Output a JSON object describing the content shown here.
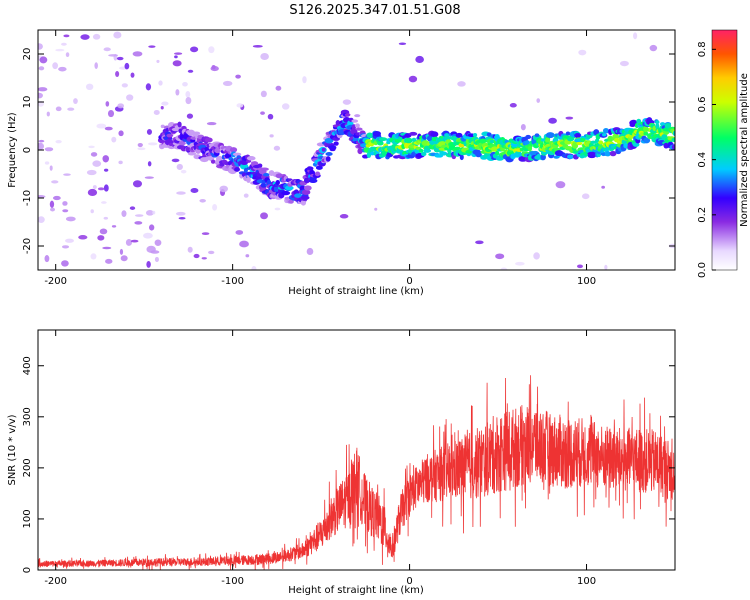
{
  "title": "S126.2025.347.01.51.G08",
  "chart_data": [
    {
      "type": "heatmap",
      "xlabel": "Height of straight line (km)",
      "ylabel": "Frequency (Hz)",
      "xlim": [
        -210,
        150
      ],
      "ylim": [
        -25,
        25
      ],
      "x_ticks": [
        "-200",
        "-100",
        "0",
        "100"
      ],
      "y_ticks": [
        "-20",
        "-10",
        "0",
        "10",
        "20"
      ],
      "ridge": {
        "x": [
          -130,
          -115,
          -100,
          -90,
          -80,
          -70,
          -60,
          -50,
          -45,
          -40,
          -35,
          -30,
          -25,
          -20,
          0,
          20,
          40,
          60,
          80,
          100,
          120,
          130,
          150
        ],
        "frequency": [
          3,
          0,
          -2,
          -4,
          -7,
          -8,
          -9,
          -1,
          1,
          5,
          6,
          3,
          1,
          1,
          1,
          1,
          1,
          0,
          1,
          1,
          2,
          4,
          3
        ]
      },
      "colorbar": {
        "label": "Normalized spectral amplitude",
        "range": [
          0.0,
          0.87
        ],
        "ticks": [
          "0.0",
          "0.2",
          "0.4",
          "0.6",
          "0.8"
        ]
      }
    },
    {
      "type": "line",
      "xlabel": "Height of straight line (km)",
      "ylabel": "SNR (10 * v/v)",
      "xlim": [
        -210,
        150
      ],
      "ylim": [
        0,
        470
      ],
      "x_ticks": [
        "-200",
        "-100",
        "0",
        "100"
      ],
      "y_ticks": [
        "0",
        "100",
        "200",
        "300",
        "400"
      ],
      "series": [
        {
          "name": "SNR",
          "color": "#ee3333",
          "x": [
            -210,
            -180,
            -150,
            -120,
            -100,
            -80,
            -70,
            -60,
            -50,
            -45,
            -40,
            -35,
            -30,
            -25,
            -20,
            -15,
            -10,
            -5,
            0,
            10,
            20,
            30,
            40,
            50,
            60,
            70,
            80,
            90,
            100,
            110,
            120,
            130,
            140,
            150
          ],
          "mean": [
            12,
            13,
            15,
            16,
            18,
            22,
            28,
            38,
            70,
            100,
            120,
            140,
            180,
            130,
            110,
            90,
            40,
            110,
            150,
            180,
            190,
            200,
            210,
            230,
            240,
            250,
            235,
            230,
            230,
            220,
            215,
            215,
            210,
            190
          ],
          "spread": [
            8,
            8,
            10,
            10,
            12,
            14,
            16,
            20,
            40,
            50,
            60,
            70,
            80,
            70,
            60,
            60,
            30,
            50,
            50,
            60,
            70,
            80,
            90,
            100,
            100,
            100,
            90,
            90,
            85,
            80,
            80,
            80,
            80,
            70
          ]
        }
      ]
    }
  ]
}
